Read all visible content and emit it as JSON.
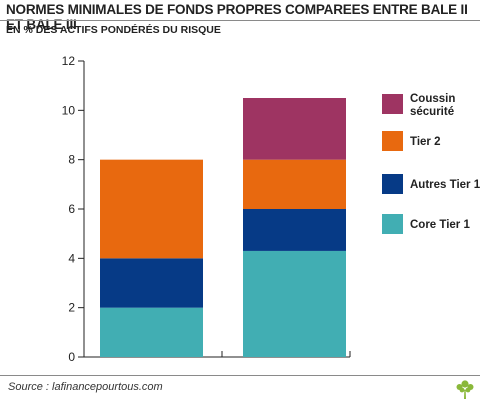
{
  "title": "NORMES MINIMALES DE FONDS PROPRES COMPAREES ENTRE BALE II ET BALE III",
  "subtitle": "EN % DES ACTIFS PONDÉRÉS DU RISQUE",
  "source": "Source : lafinancepourtous.com",
  "logo_icon": "tree-icon",
  "chart_data": {
    "type": "bar",
    "stacked": true,
    "categories": [
      "",
      ""
    ],
    "series": [
      {
        "name": "Core Tier 1",
        "color": "#41aeb3",
        "values": [
          2,
          4.3
        ]
      },
      {
        "name": "Autres Tier 1",
        "color": "#063a86",
        "values": [
          2,
          1.7
        ]
      },
      {
        "name": "Tier 2",
        "color": "#e8690f",
        "values": [
          4,
          2
        ]
      },
      {
        "name": "Coussin sécurité",
        "color": "#9e3462",
        "values": [
          0,
          2.5
        ]
      }
    ],
    "ylim": [
      0,
      12
    ],
    "yticks": [
      0,
      2,
      4,
      6,
      8,
      10,
      12
    ],
    "grid": false,
    "legend_position": "right"
  }
}
